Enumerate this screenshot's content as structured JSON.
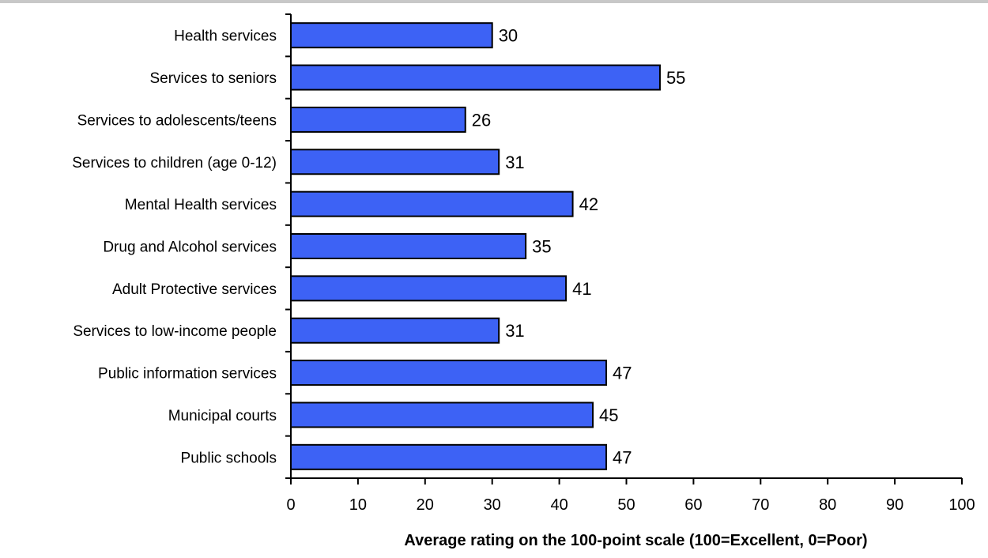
{
  "chart_data": {
    "type": "bar",
    "orientation": "horizontal",
    "categories": [
      "Health services",
      "Services to seniors",
      "Services to adolescents/teens",
      "Services to children (age 0-12)",
      "Mental Health services",
      "Drug and Alcohol services",
      "Adult Protective services",
      "Services to low-income people",
      "Public information services",
      "Municipal courts",
      "Public schools"
    ],
    "values": [
      30,
      55,
      26,
      31,
      42,
      35,
      41,
      31,
      47,
      45,
      47
    ],
    "xlabel": "Average rating on the 100-point scale (100=Excellent, 0=Poor)",
    "ylabel": "",
    "xlim": [
      0,
      100
    ],
    "xticks": [
      0,
      10,
      20,
      30,
      40,
      50,
      60,
      70,
      80,
      90,
      100
    ],
    "grid": false,
    "legend": "none",
    "colors": {
      "bar_fill": "#3d62f5",
      "bar_stroke": "#000000",
      "axis": "#000000"
    }
  }
}
